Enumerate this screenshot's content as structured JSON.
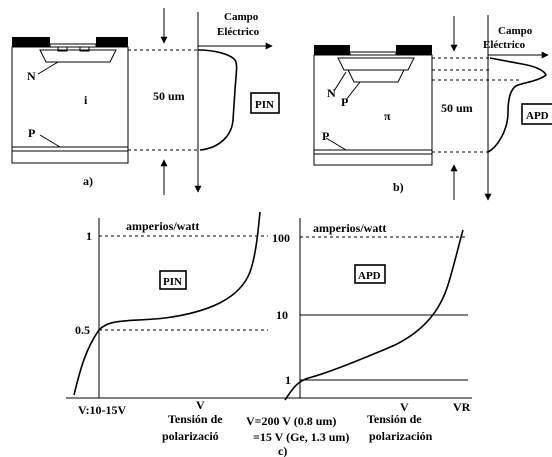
{
  "panel_a": {
    "caption": "a)",
    "field_title_line1": "Campo",
    "field_title_line2": "Eléctrico",
    "label_n": "N",
    "label_i": "i",
    "label_p": "P",
    "thickness": "50 um",
    "device": "PIN"
  },
  "panel_b": {
    "caption": "b)",
    "field_title_line1": "Campo",
    "field_title_line2": "Eléctrico",
    "label_n": "N",
    "label_p_upper": "P",
    "label_pi": "π",
    "label_p_lower": "P",
    "thickness": "50 um",
    "device": "APD"
  },
  "panel_c": {
    "caption": "c)",
    "left_plot": {
      "unit": "amperios/watt",
      "device": "PIN",
      "tick_1": "1",
      "tick_05": "0.5",
      "x_tick": "V:10-15V",
      "x_label": "V",
      "bias_line1": "Tensión de",
      "bias_line2": "polarizació"
    },
    "right_plot": {
      "unit": "amperios/watt",
      "device": "APD",
      "tick_100": "100",
      "tick_10": "10",
      "tick_1": "1",
      "x_note_line1": "V=200 V (0.8 um)",
      "x_note_line2": "=15 V (Ge, 1.3 um)",
      "x_label": "V",
      "x_end": "VR",
      "bias_line1": "Tensión de",
      "bias_line2": "polarización"
    }
  }
}
